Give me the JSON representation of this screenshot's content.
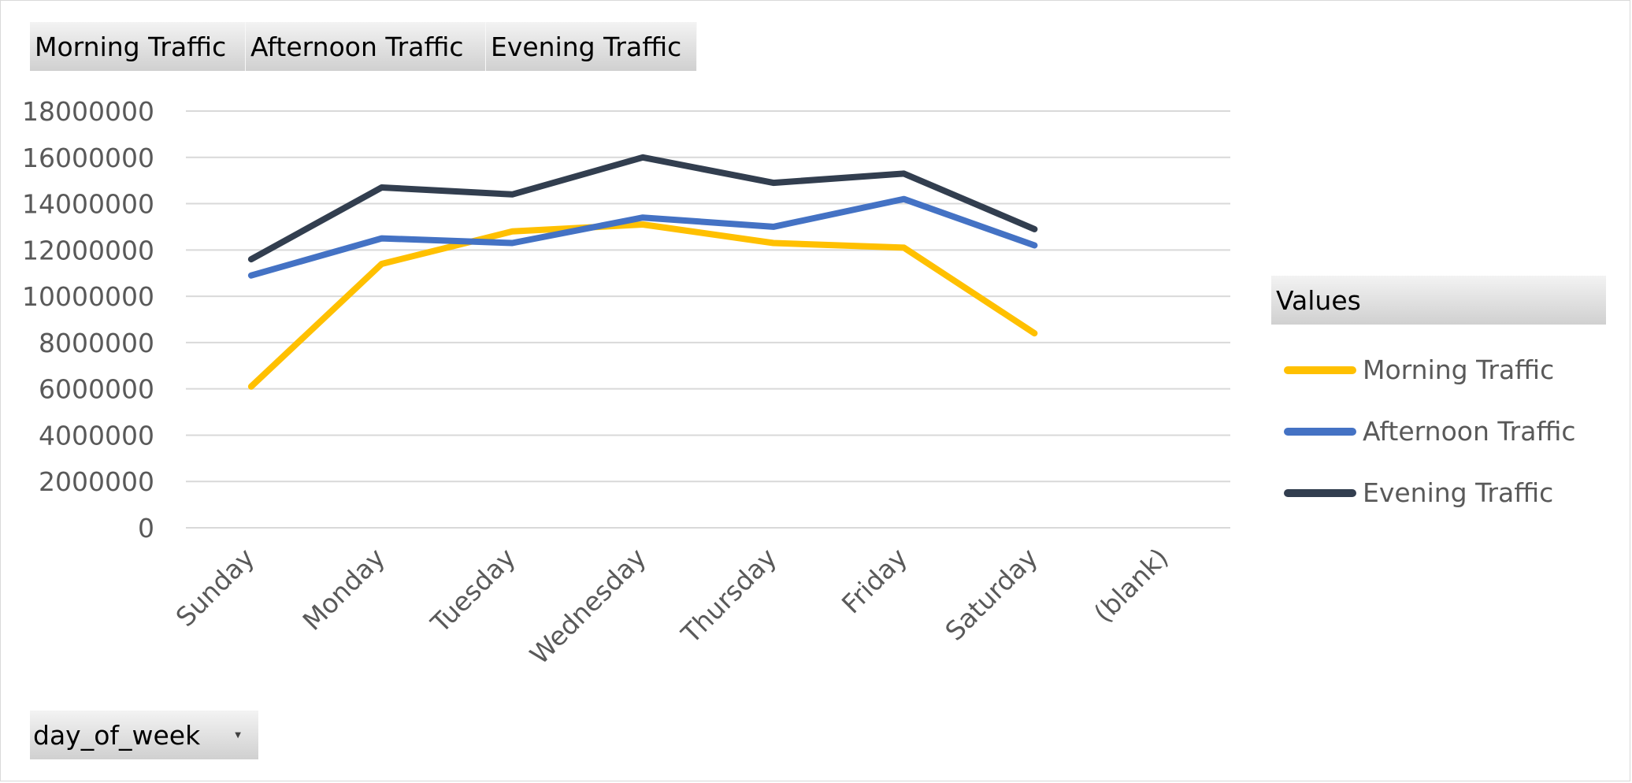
{
  "field_buttons": [
    {
      "label": "Morning Traffic"
    },
    {
      "label": "Afternoon Traffic"
    },
    {
      "label": "Evening Traffic"
    }
  ],
  "filter_button": {
    "label": "day_of_week",
    "icon": "dropdown-arrow-icon"
  },
  "legend": {
    "title": "Values",
    "items": [
      {
        "label": "Morning Traffic",
        "color": "#FFC000"
      },
      {
        "label": "Afternoon Traffic",
        "color": "#4472C4"
      },
      {
        "label": "Evening Traffic",
        "color": "#323E4F"
      }
    ]
  },
  "chart_data": {
    "type": "line",
    "categories": [
      "Sunday",
      "Monday",
      "Tuesday",
      "Wednesday",
      "Thursday",
      "Friday",
      "Saturday",
      "(blank)"
    ],
    "series": [
      {
        "name": "Morning Traffic",
        "color": "#FFC000",
        "values": [
          6100000,
          11400000,
          12800000,
          13100000,
          12300000,
          12100000,
          8400000,
          null
        ]
      },
      {
        "name": "Afternoon Traffic",
        "color": "#4472C4",
        "values": [
          10900000,
          12500000,
          12300000,
          13400000,
          13000000,
          14200000,
          12200000,
          null
        ]
      },
      {
        "name": "Evening Traffic",
        "color": "#323E4F",
        "values": [
          11600000,
          14700000,
          14400000,
          16000000,
          14900000,
          15300000,
          12900000,
          null
        ]
      }
    ],
    "ylim": [
      0,
      18000000
    ],
    "yticks": [
      "0",
      "2000000",
      "4000000",
      "6000000",
      "8000000",
      "10000000",
      "12000000",
      "14000000",
      "16000000",
      "18000000"
    ],
    "grid": true,
    "legend_position": "right"
  }
}
